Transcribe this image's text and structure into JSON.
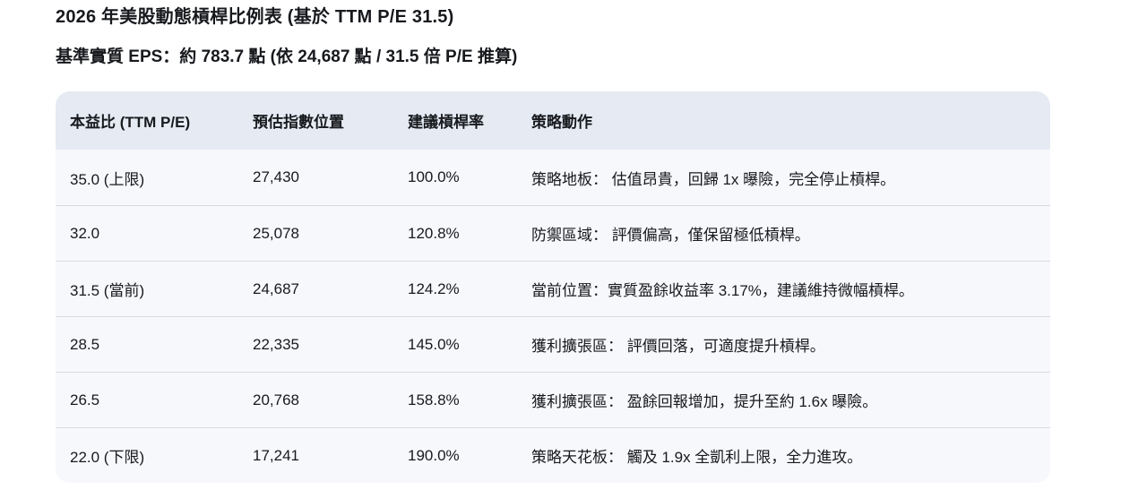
{
  "page": {
    "title": "2026 年美股動態槓桿比例表 (基於 TTM P/E 31.5)",
    "subtitle": "基準實質 EPS：約 783.7 點 (依 24,687 點 / 31.5 倍 P/E 推算)"
  },
  "colors": {
    "header_bg": "#e5eaf3",
    "row_bg": "#f7f8fb",
    "separator": "#d9dcdf",
    "text": "#17191d"
  },
  "chart_data": {
    "type": "table",
    "title": "2026 年美股動態槓桿比例表 (基於 TTM P/E 31.5)",
    "subtitle": "基準實質 EPS：約 783.7 點 (依 24,687 點 / 31.5 倍 P/E 推算)",
    "columns": [
      "本益比 (TTM P/E)",
      "預估指數位置",
      "建議槓桿率",
      "策略動作"
    ],
    "row_keys": [
      "pe",
      "index_level",
      "leverage",
      "action"
    ],
    "rows": [
      {
        "pe": "35.0 (上限)",
        "index_level": "27,430",
        "leverage": "100.0%",
        "action": "策略地板： 估值昂貴，回歸 1x 曝險，完全停止槓桿。"
      },
      {
        "pe": "32.0",
        "index_level": "25,078",
        "leverage": "120.8%",
        "action": "防禦區域： 評價偏高，僅保留極低槓桿。"
      },
      {
        "pe": "31.5 (當前)",
        "index_level": "24,687",
        "leverage": "124.2%",
        "action": "當前位置：實質盈餘收益率 3.17%，建議維持微幅槓桿。"
      },
      {
        "pe": "28.5",
        "index_level": "22,335",
        "leverage": "145.0%",
        "action": "獲利擴張區： 評價回落，可適度提升槓桿。"
      },
      {
        "pe": "26.5",
        "index_level": "20,768",
        "leverage": "158.8%",
        "action": "獲利擴張區： 盈餘回報增加，提升至約 1.6x 曝險。"
      },
      {
        "pe": "22.0 (下限)",
        "index_level": "17,241",
        "leverage": "190.0%",
        "action": "策略天花板： 觸及 1.9x 全凱利上限，全力進攻。"
      }
    ]
  }
}
